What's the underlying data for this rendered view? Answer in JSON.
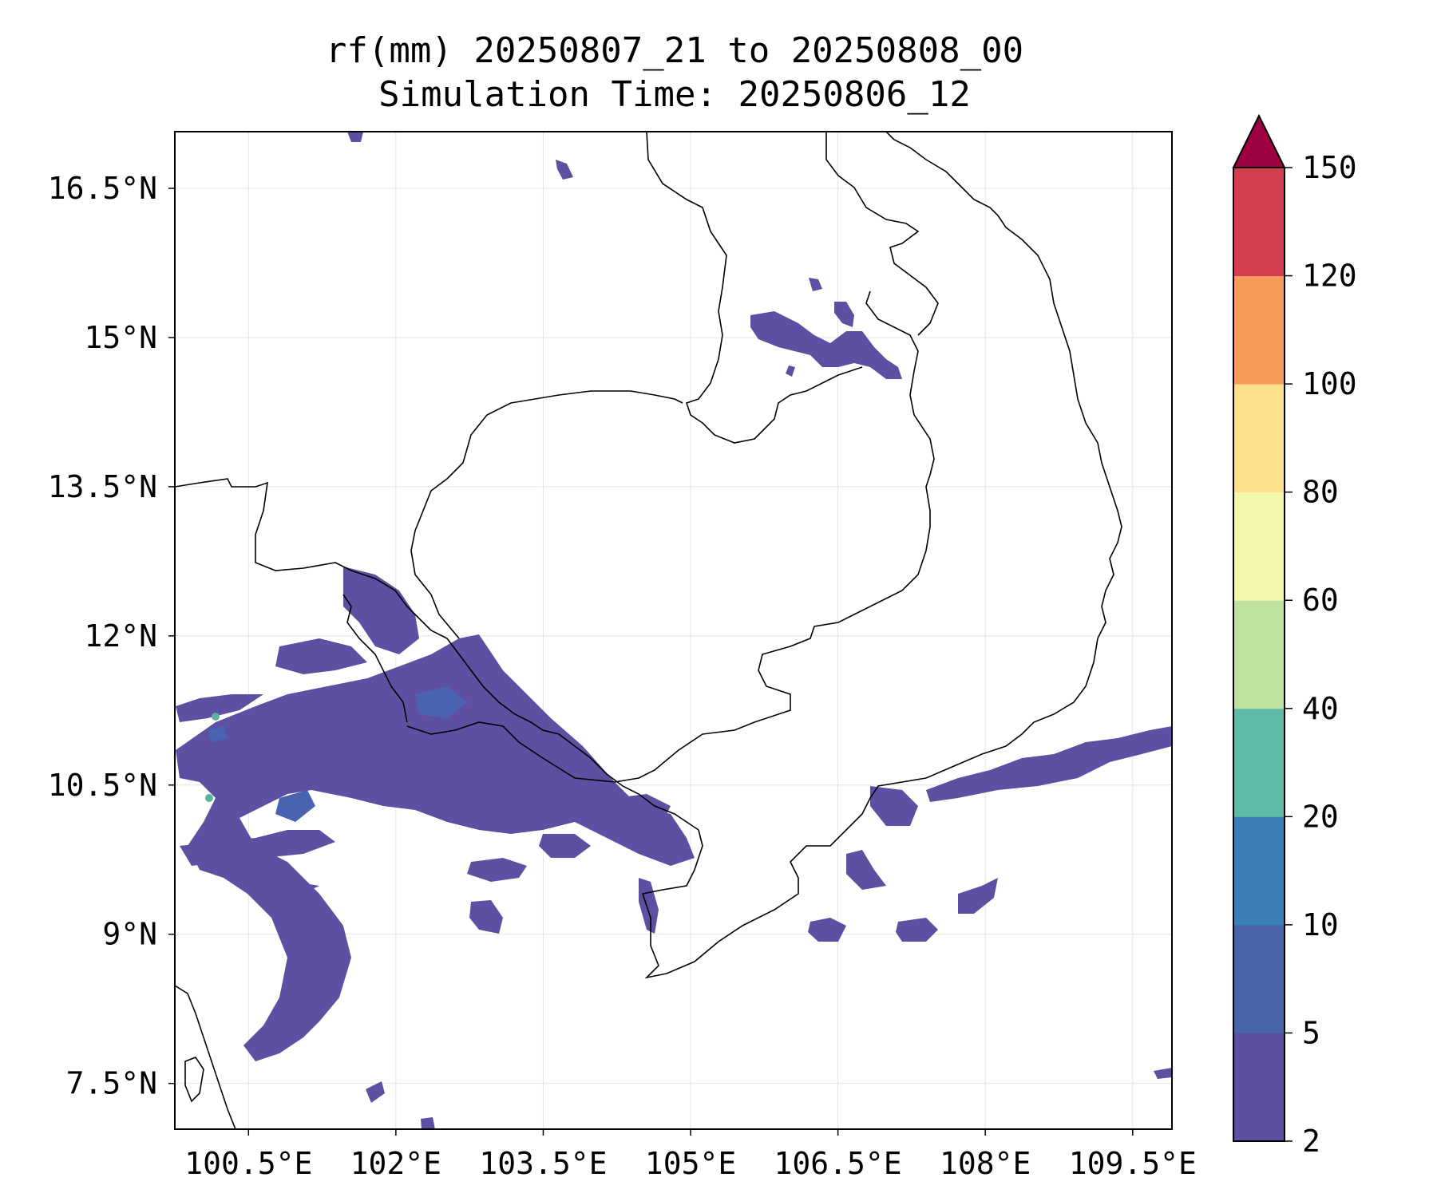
{
  "title": {
    "line1": "rf(mm) 20250807_21 to 20250808_00",
    "line2": "Simulation Time: 20250806_12"
  },
  "map": {
    "extent": {
      "lon_min": 99.75,
      "lon_max": 109.9,
      "lat_min": 7.04,
      "lat_max": 17.07
    },
    "lon_ticks": [
      {
        "value": 100.5,
        "label": "100.5°E"
      },
      {
        "value": 102.0,
        "label": "102°E"
      },
      {
        "value": 103.5,
        "label": "103.5°E"
      },
      {
        "value": 105.0,
        "label": "105°E"
      },
      {
        "value": 106.5,
        "label": "106.5°E"
      },
      {
        "value": 108.0,
        "label": "108°E"
      },
      {
        "value": 109.5,
        "label": "109.5°E"
      }
    ],
    "lat_ticks": [
      {
        "value": 16.5,
        "label": "16.5°N"
      },
      {
        "value": 15.0,
        "label": "15°N"
      },
      {
        "value": 13.5,
        "label": "13.5°N"
      },
      {
        "value": 12.0,
        "label": "12°N"
      },
      {
        "value": 10.5,
        "label": "10.5°N"
      },
      {
        "value": 9.0,
        "label": "9°N"
      },
      {
        "value": 7.5,
        "label": "7.5°N"
      }
    ],
    "gridlines": true,
    "coastline_color": "#000000",
    "rain_fill_colors": {
      "low": "#5e4fa2",
      "mid": "#4a63b0",
      "spot": "#5bb39c"
    }
  },
  "colorbar": {
    "levels": [
      {
        "label": "2",
        "color": "#5e4fa2"
      },
      {
        "label": "5",
        "color": "#4a64ac"
      },
      {
        "label": "10",
        "color": "#3a7fba"
      },
      {
        "label": "20",
        "color": "#5fbaa7"
      },
      {
        "label": "40",
        "color": "#bde2a0"
      },
      {
        "label": "60",
        "color": "#f4f8ad"
      },
      {
        "label": "80",
        "color": "#fde08b"
      },
      {
        "label": "100",
        "color": "#f99b5a"
      },
      {
        "label": "120",
        "color": "#d53e4f"
      },
      {
        "label": "150",
        "color": "#9e0142"
      }
    ],
    "extend": "max"
  }
}
